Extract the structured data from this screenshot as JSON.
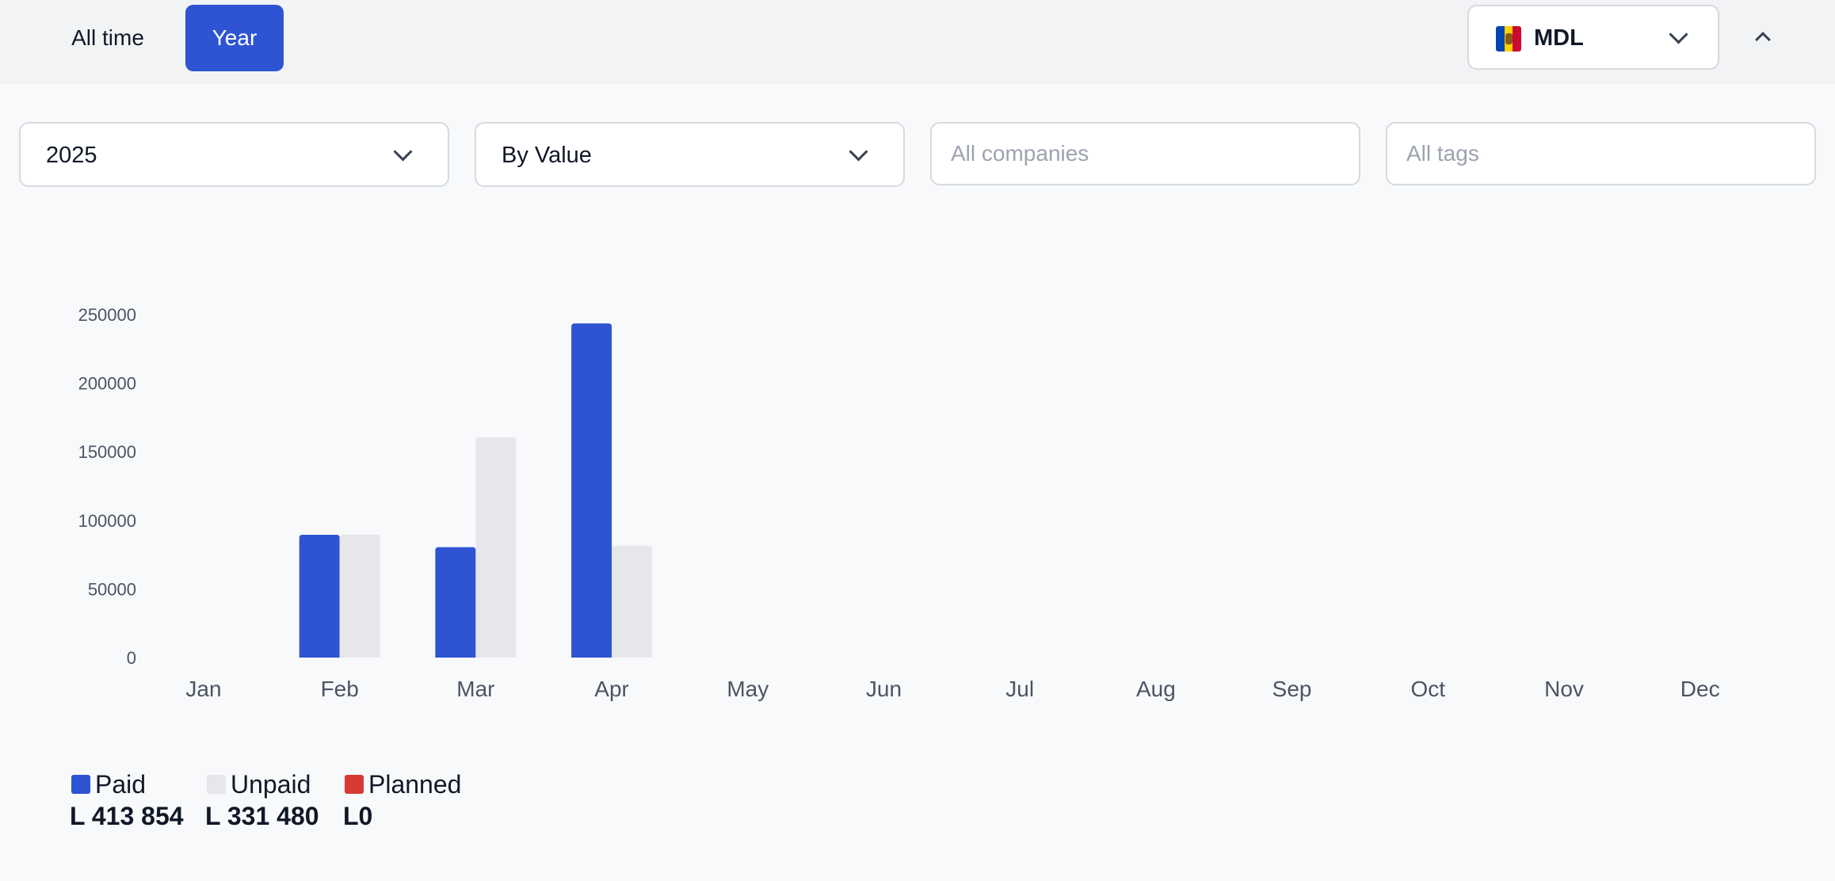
{
  "period_tabs": [
    {
      "label": "All time",
      "active": false
    },
    {
      "label": "Year",
      "active": true
    }
  ],
  "currency": {
    "code": "MDL",
    "flag_icon": "moldova-flag-icon"
  },
  "collapse_icon": "chevron-up-icon",
  "filters": {
    "year": {
      "value": "2025"
    },
    "mode": {
      "value": "By Value"
    },
    "companies": {
      "placeholder": "All companies",
      "value": ""
    },
    "tags": {
      "placeholder": "All tags",
      "value": ""
    }
  },
  "colors": {
    "accent": "#2e54d4",
    "paid": "#2e54d4",
    "unpaid": "#e5e7ea",
    "planned": "#d63b34"
  },
  "chart_data": {
    "type": "bar",
    "categories": [
      "Jan",
      "Feb",
      "Mar",
      "Apr",
      "May",
      "Jun",
      "Jul",
      "Aug",
      "Sep",
      "Oct",
      "Nov",
      "Dec"
    ],
    "series": [
      {
        "name": "Paid",
        "color": "#2e54d4",
        "values": [
          0,
          89500,
          80500,
          243500,
          0,
          0,
          0,
          0,
          0,
          0,
          0,
          0
        ]
      },
      {
        "name": "Unpaid",
        "color": "#e5e7ea",
        "values": [
          0,
          89500,
          160500,
          81500,
          0,
          0,
          0,
          0,
          0,
          0,
          0,
          0
        ]
      },
      {
        "name": "Planned",
        "color": "#d63b34",
        "values": [
          0,
          0,
          0,
          0,
          0,
          0,
          0,
          0,
          0,
          0,
          0,
          0
        ]
      }
    ],
    "yticks": [
      0,
      50000,
      100000,
      150000,
      200000,
      250000
    ],
    "ylim": [
      0,
      250000
    ],
    "title": "",
    "xlabel": "",
    "ylabel": "",
    "legend": "bottom-left"
  },
  "legend": [
    {
      "name": "Paid",
      "total": "L 413 854",
      "color": "#2e54d4"
    },
    {
      "name": "Unpaid",
      "total": "L 331 480",
      "color": "#e5e7ea"
    },
    {
      "name": "Planned",
      "total": "L0",
      "color": "#d63b34"
    }
  ]
}
